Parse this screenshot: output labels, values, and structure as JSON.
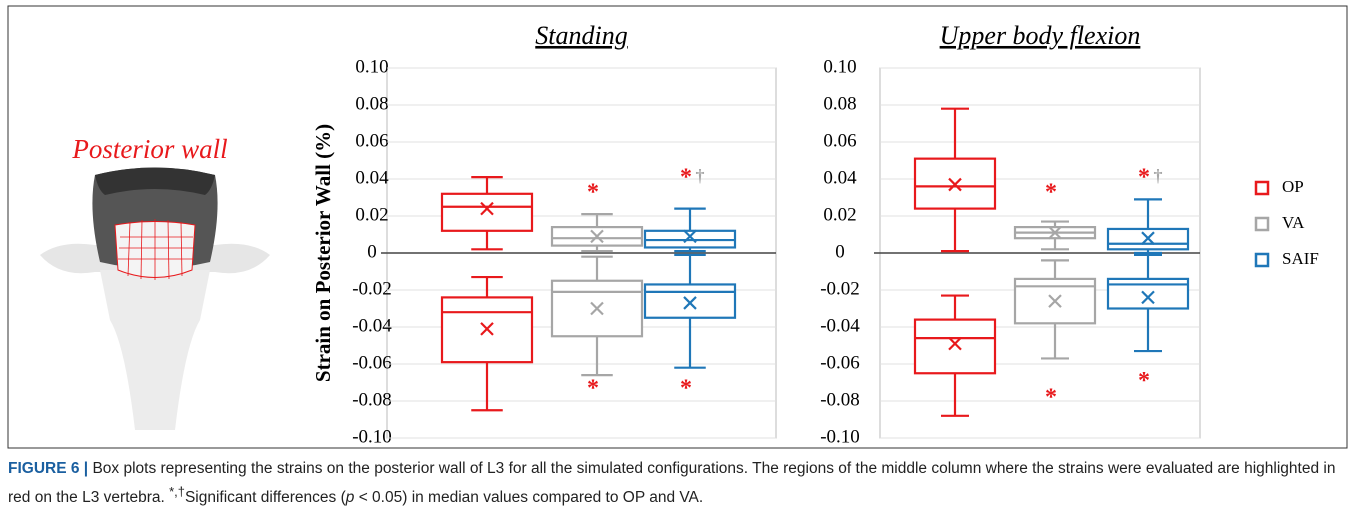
{
  "image_label": "Posterior wall",
  "chart_data": [
    {
      "type": "box",
      "title": "Standing",
      "ylabel": "Strain on Posterior Wall (%)",
      "ylim": [
        -0.1,
        0.1
      ],
      "yticks": [
        {
          "value": 0.1,
          "label": "0.10"
        },
        0.08,
        0.06,
        0.04,
        0.02,
        0,
        -0.02,
        -0.04,
        -0.06,
        -0.08,
        {
          "value": -0.1,
          "label": "-0.10"
        }
      ],
      "grid": true,
      "legend": false,
      "series": [
        {
          "color": "#e8191c",
          "boxes": [
            {
              "min": 0.002,
              "q1": 0.012,
              "median": 0.025,
              "q3": 0.032,
              "max": 0.041,
              "mean": 0.024
            },
            {
              "min": -0.085,
              "q1": -0.059,
              "median": -0.032,
              "q3": -0.024,
              "max": -0.013,
              "mean": -0.041
            }
          ],
          "annotations": []
        },
        {
          "color": "#a6a6a6",
          "boxes": [
            {
              "min": 0.001,
              "q1": 0.004,
              "median": 0.008,
              "q3": 0.014,
              "max": 0.021,
              "mean": 0.009
            },
            {
              "min": -0.066,
              "q1": -0.045,
              "median": -0.021,
              "q3": -0.015,
              "max": -0.002,
              "mean": -0.03
            }
          ],
          "annotations": [
            {
              "text": "*",
              "y": 0.032
            },
            {
              "text": "*",
              "y": -0.074
            }
          ]
        },
        {
          "color": "#1f77b8",
          "boxes": [
            {
              "min": 0.001,
              "q1": 0.003,
              "median": 0.007,
              "q3": 0.012,
              "max": 0.024,
              "mean": 0.009
            },
            {
              "min": -0.062,
              "q1": -0.035,
              "median": -0.021,
              "q3": -0.017,
              "max": -0.001,
              "mean": -0.027
            }
          ],
          "annotations": [
            {
              "text": "*",
              "y": 0.04
            },
            {
              "text": "†",
              "y": 0.041
            },
            {
              "text": "*",
              "y": -0.074
            }
          ]
        }
      ]
    },
    {
      "type": "box",
      "title": "Upper body flexion",
      "ylim": [
        -0.1,
        0.1
      ],
      "yticks": [
        {
          "value": 0.1,
          "label": "0.10"
        },
        0.08,
        0.06,
        0.04,
        0.02,
        0,
        -0.02,
        -0.04,
        -0.06,
        -0.08,
        {
          "value": -0.1,
          "label": "-0.10"
        }
      ],
      "grid": true,
      "legend": true,
      "series": [
        {
          "name": "OP",
          "color": "#e8191c",
          "boxes": [
            {
              "min": 0.001,
              "q1": 0.024,
              "median": 0.036,
              "q3": 0.051,
              "max": 0.078,
              "mean": 0.037
            },
            {
              "min": -0.088,
              "q1": -0.065,
              "median": -0.046,
              "q3": -0.036,
              "max": -0.023,
              "mean": -0.049
            }
          ],
          "annotations": []
        },
        {
          "name": "VA",
          "color": "#a6a6a6",
          "boxes": [
            {
              "min": 0.002,
              "q1": 0.008,
              "median": 0.011,
              "q3": 0.014,
              "max": 0.017,
              "mean": 0.011
            },
            {
              "min": -0.057,
              "q1": -0.038,
              "median": -0.018,
              "q3": -0.014,
              "max": -0.004,
              "mean": -0.026
            }
          ],
          "annotations": [
            {
              "text": "*",
              "y": 0.032
            },
            {
              "text": "*",
              "y": -0.079
            }
          ]
        },
        {
          "name": "SAIF",
          "color": "#1f77b8",
          "boxes": [
            {
              "min": 0,
              "q1": 0.002,
              "median": 0.005,
              "q3": 0.013,
              "max": 0.029,
              "mean": 0.008
            },
            {
              "min": -0.053,
              "q1": -0.03,
              "median": -0.017,
              "q3": -0.014,
              "max": -0.001,
              "mean": -0.024
            }
          ],
          "annotations": [
            {
              "text": "*",
              "y": 0.04
            },
            {
              "text": "†",
              "y": 0.041
            },
            {
              "text": "*",
              "y": -0.07
            }
          ]
        }
      ]
    }
  ],
  "caption": {
    "label": "FIGURE 6 |",
    "text1": " Box plots representing the strains on the posterior wall of L3 for all the simulated configurations. The regions of the middle column where the strains were evaluated are highlighted in red on the L3 vertebra. ",
    "sup": "*,†",
    "text2": "Significant differences (",
    "p": "p",
    "text3": " < 0.05) in median values compared to OP and VA."
  }
}
